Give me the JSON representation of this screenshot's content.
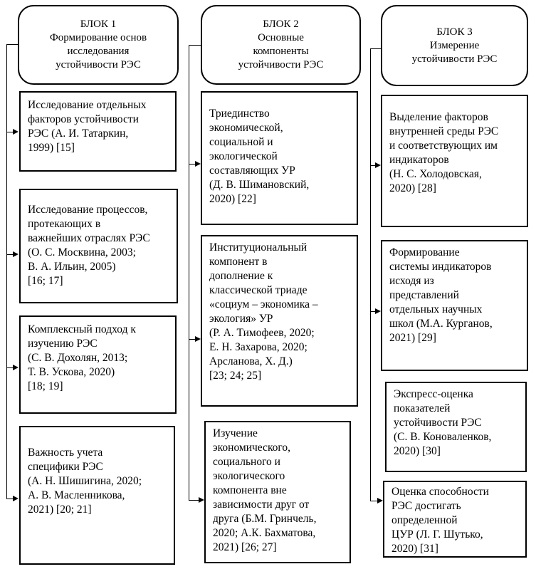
{
  "blocks": [
    {
      "header": "БЛОК 1\nФормирование основ\nисследования\nустойчивости РЭС",
      "items": [
        "Исследование отдельных\nфакторов устойчивости\nРЭС (А. И. Татаркин,\n1999) [15]",
        "Исследование процессов,\nпротекающих в\nважнейших отраслях РЭС\n(О. С. Москвина, 2003;\nВ. А. Ильин, 2005)\n[16; 17]",
        "Комплексный подход к\nизучению РЭС\n(С. В. Дохолян, 2013;\nТ. В. Ускова, 2020)\n[18; 19]",
        "Важность учета\nспецифики РЭС\n(А. Н. Шишигина, 2020;\nА. В. Масленникова,\n2021) [20; 21]"
      ]
    },
    {
      "header": "БЛОК 2\nОсновные\nкомпоненты\nустойчивости РЭС",
      "items": [
        "Триединство\nэкономической,\nсоциальной и\nэкологической\nсоставляющих УР\n(Д. В. Шимановский,\n2020) [22]",
        "Институциональный\nкомпонент в\nдополнение к\nклассической триаде\n«социум – экономика –\nэкология» УР\n(Р. А. Тимофеев, 2020;\nЕ. Н. Захарова, 2020;\nАрсланова, Х. Д.)\n[23; 24; 25]",
        "Изучение\nэкономического,\nсоциального и\nэкологического\nкомпонента вне\nзависимости друг от\nдруга (Б.М. Гринчель,\n2020; А.К. Бахматова,\n2021) [26; 27]"
      ]
    },
    {
      "header": "БЛОК 3\nИзмерение\nустойчивости РЭС",
      "items": [
        "Выделение факторов\nвнутренней среды РЭС\nи соответствующих им\nиндикаторов\n(Н. С. Холодовская,\n2020) [28]",
        "Формирование\nсистемы индикаторов\nисходя из\nпредставлений\nотдельных научных\nшкол (М.А.  Курганов,\n2021) [29]",
        "Экспресс-оценка\nпоказателей\nустойчивости РЭС\n(С. В. Коноваленков,\n2020) [30]",
        "Оценка способности\nРЭС достигать\nопределенной\nЦУР (Л. Г. Шутько,\n2020) [31]"
      ]
    }
  ]
}
